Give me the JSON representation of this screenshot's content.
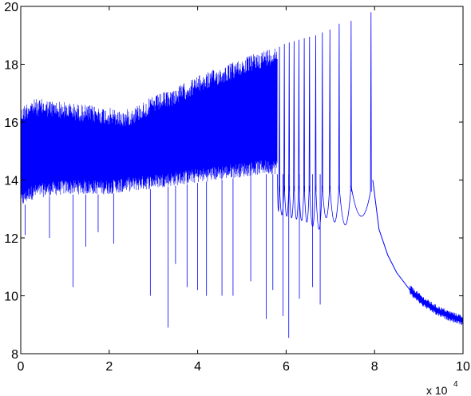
{
  "chart_data": {
    "type": "line",
    "title": "",
    "xlabel": "",
    "ylabel": "",
    "xlim": [
      0,
      100000
    ],
    "ylim": [
      8,
      20
    ],
    "x_ticks": [
      0,
      20000,
      40000,
      60000,
      80000,
      100000
    ],
    "x_tick_labels": [
      "0",
      "2",
      "4",
      "6",
      "8",
      "10"
    ],
    "y_ticks": [
      8,
      10,
      12,
      14,
      16,
      18,
      20
    ],
    "y_tick_labels": [
      "8",
      "10",
      "12",
      "14",
      "16",
      "18",
      "20"
    ],
    "x_exponent_label": "x 10",
    "x_exponent_power": "4",
    "grid": false,
    "legend": "none",
    "line_color": "#0000ff",
    "series": [
      {
        "envelope": {
          "x": [
            0,
            2000,
            5000,
            10000,
            15000,
            20000,
            23000,
            25000,
            30000,
            35000,
            40000,
            45000,
            50000,
            55000,
            58000
          ],
          "upper": [
            16.5,
            16.8,
            16.8,
            16.7,
            16.6,
            16.5,
            16.4,
            16.5,
            16.9,
            17.2,
            17.6,
            17.9,
            18.2,
            18.5,
            18.65
          ],
          "lower": [
            13.0,
            13.3,
            13.4,
            13.5,
            13.5,
            13.5,
            13.6,
            13.6,
            13.7,
            13.8,
            13.9,
            14.0,
            14.1,
            14.2,
            14.2
          ]
        },
        "down_spikes": [
          {
            "x": 1000,
            "y": 12.1
          },
          {
            "x": 6500,
            "y": 12.0
          },
          {
            "x": 11800,
            "y": 10.3
          },
          {
            "x": 14700,
            "y": 11.7
          },
          {
            "x": 17500,
            "y": 12.2
          },
          {
            "x": 21000,
            "y": 11.8
          },
          {
            "x": 29300,
            "y": 10.0
          },
          {
            "x": 33300,
            "y": 8.9
          },
          {
            "x": 35000,
            "y": 11.1
          },
          {
            "x": 37600,
            "y": 10.3
          },
          {
            "x": 40000,
            "y": 10.2
          },
          {
            "x": 42000,
            "y": 10.0
          },
          {
            "x": 45500,
            "y": 10.0
          },
          {
            "x": 48000,
            "y": 10.0
          },
          {
            "x": 52000,
            "y": 10.5
          },
          {
            "x": 55500,
            "y": 9.2
          },
          {
            "x": 57000,
            "y": 10.2
          },
          {
            "x": 59300,
            "y": 9.3
          },
          {
            "x": 60600,
            "y": 8.55
          },
          {
            "x": 63000,
            "y": 9.9
          },
          {
            "x": 66000,
            "y": 10.3
          },
          {
            "x": 67700,
            "y": 9.7
          }
        ],
        "up_spikes": [
          {
            "x": 22200,
            "y": 14.0
          },
          {
            "x": 23000,
            "y": 14.4
          },
          {
            "x": 22600,
            "y": 14.2
          }
        ],
        "resonances": [
          {
            "x": 58500,
            "floor": 12.6,
            "peak": 18.6
          },
          {
            "x": 59600,
            "floor": 12.5,
            "peak": 18.7
          },
          {
            "x": 60700,
            "floor": 12.4,
            "peak": 18.75
          },
          {
            "x": 61800,
            "floor": 12.3,
            "peak": 18.8
          },
          {
            "x": 62900,
            "floor": 12.2,
            "peak": 18.85
          },
          {
            "x": 64100,
            "floor": 12.1,
            "peak": 18.9
          },
          {
            "x": 65300,
            "floor": 12.0,
            "peak": 18.95
          },
          {
            "x": 66700,
            "floor": 11.7,
            "peak": 19.0
          },
          {
            "x": 68200,
            "floor": 11.5,
            "peak": 19.1
          },
          {
            "x": 69900,
            "floor": 12.3,
            "peak": 19.2
          },
          {
            "x": 72000,
            "floor": 12.0,
            "peak": 19.4
          },
          {
            "x": 74700,
            "floor": 11.8,
            "peak": 19.5
          },
          {
            "x": 79200,
            "floor": 12.4,
            "peak": 19.8
          }
        ],
        "tail": {
          "x": [
            79600,
            81000,
            83000,
            85000,
            88000,
            91000,
            94000,
            97000,
            100000
          ],
          "y": [
            14.0,
            12.3,
            11.4,
            10.8,
            10.2,
            9.8,
            9.5,
            9.3,
            9.15
          ]
        }
      }
    ]
  }
}
